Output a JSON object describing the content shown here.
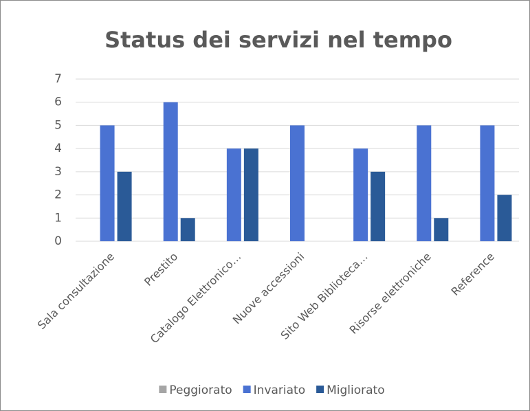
{
  "chart_data": {
    "type": "bar",
    "title": "Status dei servizi nel tempo",
    "categories": [
      "Sala consultazione",
      "Prestito",
      "Catalogo Elettronico…",
      "Nuove accessioni",
      "Sito Web Biblioteca…",
      "Risorse elettroniche",
      "Reference"
    ],
    "series": [
      {
        "name": "Peggiorato",
        "color": "#a5a5a5",
        "values": [
          0,
          0,
          0,
          0,
          0,
          0,
          0
        ]
      },
      {
        "name": "Invariato",
        "color": "#4a72d2",
        "values": [
          5,
          6,
          4,
          5,
          4,
          5,
          5
        ]
      },
      {
        "name": "Migliorato",
        "color": "#2a5a97",
        "values": [
          3,
          1,
          4,
          0,
          3,
          1,
          2
        ]
      }
    ],
    "ylim": [
      0,
      7
    ],
    "yticks": [
      0,
      1,
      2,
      3,
      4,
      5,
      6,
      7
    ],
    "grid": true,
    "legend": "bottom"
  }
}
